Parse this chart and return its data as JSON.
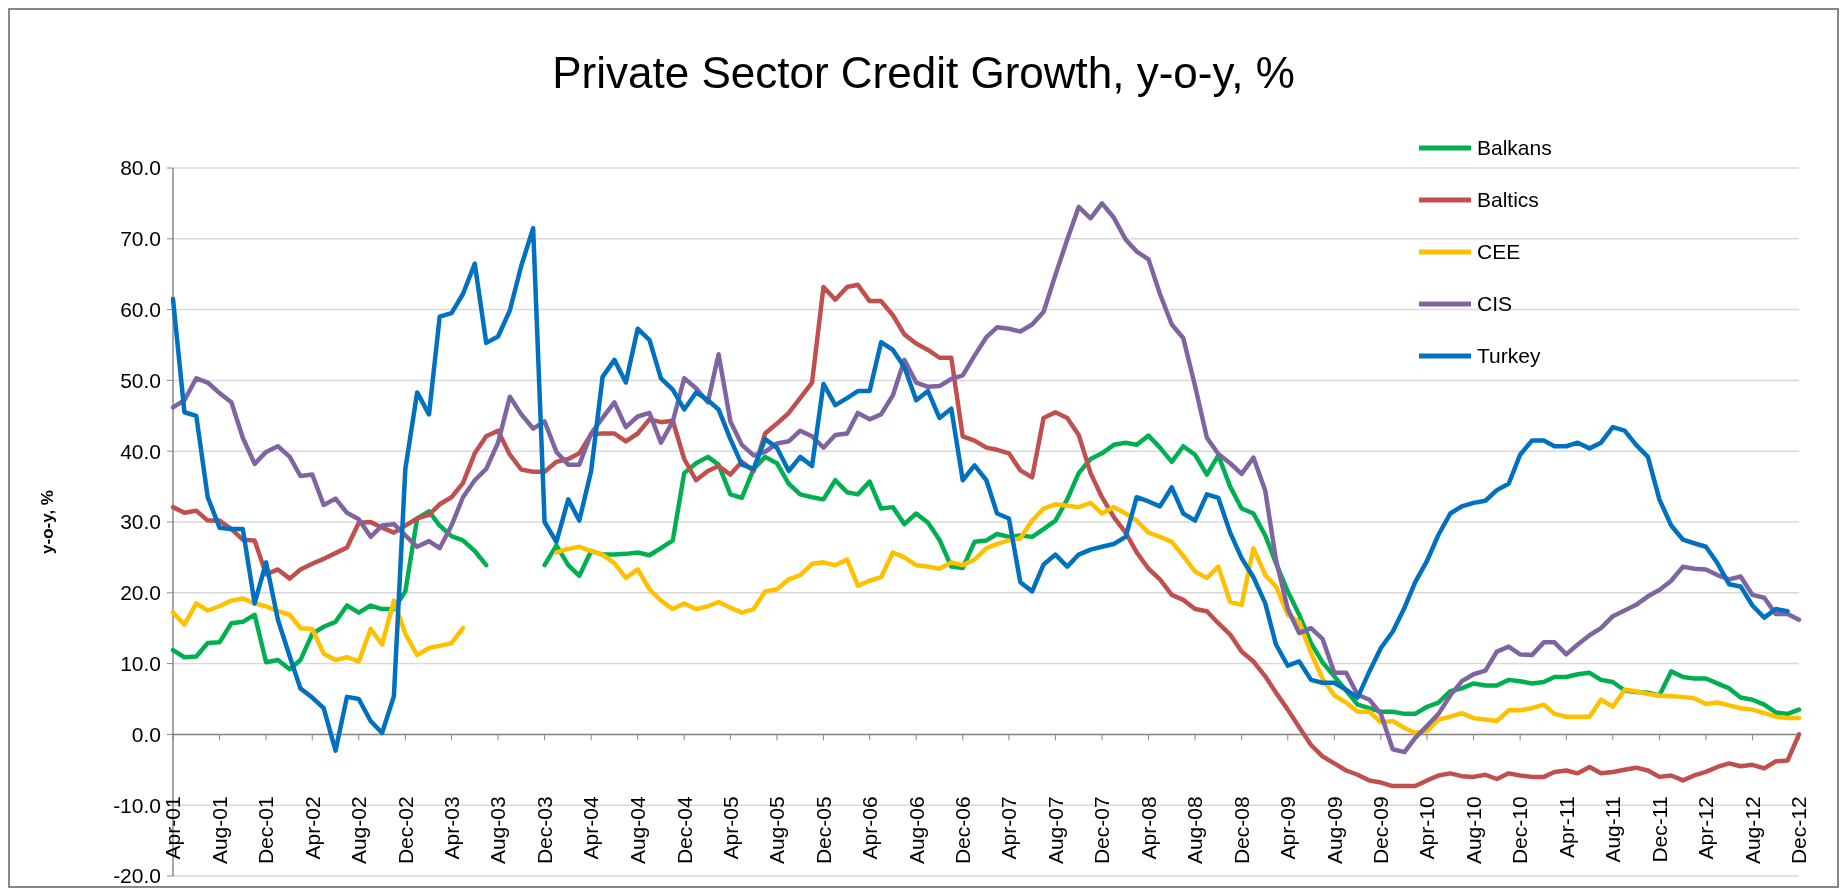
{
  "chart_data": {
    "type": "line",
    "title": "Private Sector Credit Growth, y-o-y, %",
    "ylabel": "y-o-y, %",
    "x": [
      "2001-04",
      "2001-05",
      "2001-06",
      "2001-07",
      "2001-08",
      "2001-09",
      "2001-10",
      "2001-11",
      "2001-12",
      "2002-01",
      "2002-02",
      "2002-03",
      "2002-04",
      "2002-05",
      "2002-06",
      "2002-07",
      "2002-08",
      "2002-09",
      "2002-10",
      "2002-11",
      "2002-12",
      "2003-01",
      "2003-02",
      "2003-03",
      "2003-04",
      "2003-05",
      "2003-06",
      "2003-07",
      "2003-08",
      "2003-09",
      "2003-10",
      "2003-11",
      "2003-12",
      "2004-01",
      "2004-02",
      "2004-03",
      "2004-04",
      "2004-05",
      "2004-06",
      "2004-07",
      "2004-08",
      "2004-09",
      "2004-10",
      "2004-11",
      "2004-12",
      "2005-01",
      "2005-02",
      "2005-03",
      "2005-04",
      "2005-05",
      "2005-06",
      "2005-07",
      "2005-08",
      "2005-09",
      "2005-10",
      "2005-11",
      "2005-12",
      "2006-01",
      "2006-02",
      "2006-03",
      "2006-04",
      "2006-05",
      "2006-06",
      "2006-07",
      "2006-08",
      "2006-09",
      "2006-10",
      "2006-11",
      "2006-12",
      "2007-01",
      "2007-02",
      "2007-03",
      "2007-04",
      "2007-05",
      "2007-06",
      "2007-07",
      "2007-08",
      "2007-09",
      "2007-10",
      "2007-11",
      "2007-12",
      "2008-01",
      "2008-02",
      "2008-03",
      "2008-04",
      "2008-05",
      "2008-06",
      "2008-07",
      "2008-08",
      "2008-09",
      "2008-10",
      "2008-11",
      "2008-12",
      "2009-01",
      "2009-02",
      "2009-03",
      "2009-04",
      "2009-05",
      "2009-06",
      "2009-07",
      "2009-08",
      "2009-09",
      "2009-10",
      "2009-11",
      "2009-12",
      "2010-01",
      "2010-02",
      "2010-03",
      "2010-04",
      "2010-05",
      "2010-06",
      "2010-07",
      "2010-08",
      "2010-09",
      "2010-10",
      "2010-11",
      "2010-12",
      "2011-01",
      "2011-02",
      "2011-03",
      "2011-04",
      "2011-05",
      "2011-06",
      "2011-07",
      "2011-08",
      "2011-09",
      "2011-10",
      "2011-11",
      "2011-12",
      "2012-01",
      "2012-02",
      "2012-03",
      "2012-04",
      "2012-05",
      "2012-06",
      "2012-07",
      "2012-08",
      "2012-09",
      "2012-10",
      "2012-11",
      "2012-12"
    ],
    "series": [
      {
        "name": "Balkans",
        "color": "#00b050",
        "values": [
          11.9,
          10.9,
          11,
          12.9,
          13,
          15.7,
          15.9,
          16.9,
          10.2,
          10.5,
          9.2,
          10.5,
          14.2,
          15.2,
          15.9,
          18.2,
          17.2,
          18.2,
          17.7,
          17.7,
          20.2,
          30.5,
          31.5,
          29.5,
          28,
          27.4,
          25.9,
          23.9,
          null,
          null,
          null,
          null,
          23.9,
          26.7,
          23.9,
          22.4,
          25.9,
          25.4,
          25.4,
          25.5,
          25.7,
          25.3,
          26.3,
          27.4,
          36.9,
          38.3,
          39.2,
          38.1,
          33.9,
          33.4,
          37.5,
          39.2,
          38.3,
          35.4,
          33.9,
          33.5,
          33.2,
          35.9,
          34.2,
          33.9,
          35.7,
          31.9,
          32.1,
          29.7,
          31.2,
          29.9,
          27.5,
          23.7,
          23.5,
          27.2,
          27.4,
          28.3,
          27.9,
          28.1,
          27.9,
          29,
          30.2,
          33.2,
          36.9,
          38.9,
          39.7,
          40.9,
          41.2,
          40.9,
          42.2,
          40.5,
          38.5,
          40.7,
          39.5,
          36.7,
          39.4,
          35,
          31.9,
          31.2,
          28.1,
          24.2,
          20.2,
          16.9,
          12.9,
          10.2,
          8.2,
          6.2,
          4.2,
          3.7,
          3.2,
          3.2,
          2.9,
          2.9,
          3.9,
          4.5,
          6.1,
          6.5,
          7.2,
          6.9,
          6.9,
          7.7,
          7.5,
          7.2,
          7.4,
          8.1,
          8.1,
          8.5,
          8.7,
          7.7,
          7.4,
          6.2,
          6,
          5.9,
          5.5,
          8.9,
          8.1,
          7.9,
          7.9,
          7.2,
          6.5,
          5.2,
          4.9,
          4.2,
          3.1,
          2.9,
          3.5
        ]
      },
      {
        "name": "Baltics",
        "color": "#c0504d",
        "values": [
          32.1,
          31.3,
          31.6,
          30.2,
          30.2,
          29,
          27.5,
          27.4,
          22.6,
          23.3,
          22,
          23.3,
          24.1,
          24.8,
          25.6,
          26.4,
          29.9,
          30,
          29.2,
          28.5,
          29.5,
          30.5,
          31,
          32.5,
          33.5,
          35.5,
          39.7,
          42.1,
          42.9,
          39.5,
          37.4,
          37.1,
          37.1,
          38.5,
          38.9,
          39.7,
          42.4,
          42.5,
          42.5,
          41.4,
          42.5,
          44.5,
          44.1,
          44.3,
          38.9,
          35.9,
          37.2,
          37.9,
          36.7,
          38.5,
          37.2,
          42.5,
          43.9,
          45.4,
          47.5,
          49.7,
          63.2,
          61.4,
          63.2,
          63.5,
          61.2,
          61.2,
          59.2,
          56.5,
          55.2,
          54.3,
          53.2,
          53.2,
          42.1,
          41.5,
          40.5,
          40.2,
          39.7,
          37.3,
          36.3,
          44.7,
          45.5,
          44.7,
          42.3,
          36.9,
          33.5,
          30.7,
          28.5,
          25.7,
          23.4,
          21.9,
          19.7,
          19,
          17.7,
          17.4,
          15.7,
          14.1,
          11.7,
          10.3,
          8.2,
          5.9,
          3.5,
          1,
          -1.5,
          -3.1,
          -4.1,
          -5.1,
          -5.7,
          -6.5,
          -6.8,
          -7.3,
          -7.3,
          -7.3,
          -6.5,
          -5.8,
          -5.5,
          -5.9,
          -6,
          -5.7,
          -6.3,
          -5.5,
          -5.8,
          -6,
          -6,
          -5.3,
          -5.1,
          -5.5,
          -4.6,
          -5.5,
          -5.3,
          -5,
          -4.7,
          -5.1,
          -6,
          -5.8,
          -6.5,
          -5.8,
          -5.3,
          -4.6,
          -4.1,
          -4.5,
          -4.3,
          -4.8,
          -3.8,
          -3.7,
          0
        ]
      },
      {
        "name": "CEE",
        "color": "#ffc000",
        "values": [
          17.2,
          15.5,
          18.5,
          17.5,
          18.1,
          18.9,
          19.2,
          18.5,
          18.1,
          17.4,
          16.9,
          15,
          14.9,
          11.4,
          10.5,
          10.9,
          10.3,
          14.9,
          12.7,
          18.9,
          14.2,
          11.2,
          12.2,
          12.5,
          12.9,
          15,
          null,
          null,
          null,
          null,
          null,
          null,
          null,
          25.7,
          26.2,
          26.5,
          25.9,
          25.4,
          24.2,
          22.1,
          23.3,
          20.5,
          18.9,
          17.7,
          18.5,
          17.7,
          18.1,
          18.7,
          17.9,
          17.2,
          17.7,
          20.2,
          20.5,
          21.9,
          22.5,
          24.1,
          24.3,
          23.9,
          24.7,
          21,
          21.7,
          22.2,
          25.7,
          25,
          23.9,
          23.7,
          23.4,
          24.3,
          23.9,
          24.7,
          26.3,
          26.9,
          27.4,
          27.7,
          30.2,
          31.9,
          32.5,
          32.3,
          32.1,
          32.7,
          31.2,
          32.1,
          31.2,
          30.2,
          28.5,
          27.9,
          27.2,
          25.2,
          23,
          22.1,
          23.7,
          18.7,
          18.3,
          26.3,
          22.5,
          20.9,
          16.9,
          15.9,
          11.5,
          7.9,
          5.5,
          4.5,
          3.2,
          3.2,
          1.7,
          1.9,
          0.9,
          0.2,
          0.5,
          2.1,
          2.5,
          3,
          2.3,
          2.1,
          1.9,
          3.4,
          3.4,
          3.7,
          4.2,
          2.9,
          2.5,
          2.5,
          2.5,
          4.9,
          3.9,
          6.3,
          6.1,
          5.7,
          5.5,
          5.4,
          5.3,
          5.1,
          4.3,
          4.5,
          4.1,
          3.7,
          3.5,
          3,
          2.5,
          2.3,
          2.3
        ]
      },
      {
        "name": "CIS",
        "color": "#8064a2",
        "values": [
          46.2,
          47.2,
          50.3,
          49.7,
          48.2,
          46.9,
          41.9,
          38.2,
          39.9,
          40.7,
          39.2,
          36.5,
          36.7,
          32.4,
          33.3,
          31.3,
          30.4,
          27.9,
          29.5,
          29.7,
          28.1,
          26.5,
          27.3,
          26.3,
          29.5,
          33.5,
          35.9,
          37.5,
          41.2,
          47.7,
          45.2,
          43.2,
          44.2,
          39.9,
          38.1,
          38.1,
          42.5,
          44.7,
          46.9,
          43.4,
          44.9,
          45.4,
          41.2,
          44.2,
          50.3,
          48.9,
          46.9,
          53.7,
          44.2,
          40.9,
          39.4,
          39.9,
          41.1,
          41.4,
          42.9,
          42.1,
          40.5,
          42.3,
          42.5,
          45.4,
          44.5,
          45.2,
          47.9,
          52.9,
          49.7,
          49.1,
          49.2,
          50.2,
          50.7,
          53.5,
          56.1,
          57.5,
          57.3,
          56.9,
          57.9,
          59.7,
          64.9,
          69.9,
          74.5,
          72.9,
          75,
          73,
          69.9,
          68.2,
          67.1,
          62.2,
          57.9,
          56,
          49.2,
          41.9,
          39.6,
          38.3,
          36.8,
          39.1,
          34.4,
          24.7,
          17.7,
          14.3,
          15,
          13.5,
          8.7,
          8.7,
          5.6,
          4.9,
          2.9,
          -2.1,
          -2.5,
          -0.5,
          1.2,
          2.9,
          5.5,
          7.5,
          8.5,
          9,
          11.7,
          12.4,
          11.3,
          11.2,
          13,
          13,
          11.3,
          12.7,
          14,
          15,
          16.7,
          17.5,
          18.3,
          19.5,
          20.4,
          21.7,
          23.7,
          23.4,
          23.3,
          22.5,
          21.9,
          22.3,
          19.7,
          19.3,
          17,
          17,
          16.2
        ]
      },
      {
        "name": "Turkey",
        "color": "#0070c0",
        "values": [
          61.5,
          45.5,
          45,
          33.5,
          29.2,
          29,
          29,
          18.5,
          24.3,
          16.2,
          11,
          6.5,
          5.2,
          3.7,
          -2.3,
          5.3,
          5,
          1.9,
          0.2,
          5.4,
          37.5,
          48.3,
          45.2,
          59,
          59.5,
          62.2,
          66.5,
          55.3,
          56.2,
          59.9,
          66.2,
          71.5,
          30,
          27.2,
          33.2,
          30.2,
          37.2,
          50.5,
          52.9,
          49.7,
          57.3,
          55.7,
          50.3,
          48.7,
          45.9,
          48.3,
          47.2,
          45.9,
          41.7,
          38.1,
          37.5,
          41.7,
          40.5,
          37.2,
          39.2,
          37.9,
          49.5,
          46.5,
          47.5,
          48.5,
          48.5,
          55.4,
          54.3,
          51.9,
          47.2,
          48.5,
          44.7,
          46,
          35.9,
          38,
          35.9,
          31.2,
          30.5,
          21.5,
          20.2,
          24,
          25.4,
          23.7,
          25.4,
          26.1,
          26.5,
          26.9,
          27.9,
          33.5,
          32.9,
          32.2,
          34.9,
          31.2,
          30.2,
          33.9,
          33.4,
          28.5,
          24.9,
          22.2,
          18.5,
          12.7,
          9.7,
          10.3,
          7.7,
          7.3,
          7.3,
          6.3,
          5.2,
          8.9,
          12.2,
          14.5,
          17.9,
          21.5,
          24.5,
          28.2,
          31.2,
          32.2,
          32.7,
          33,
          34.5,
          35.4,
          39.5,
          41.5,
          41.5,
          40.7,
          40.7,
          41.2,
          40.4,
          41.2,
          43.4,
          42.9,
          40.9,
          39.2,
          33.2,
          29.5,
          27.5,
          27,
          26.5,
          24.2,
          21.2,
          20.9,
          18.2,
          16.5,
          17.7,
          17.4,
          null
        ]
      }
    ],
    "xlim": [
      "2001-04",
      "2012-12"
    ],
    "xticks": [
      {
        "value": "2001-04",
        "label": "Apr-01"
      },
      {
        "value": "2001-08",
        "label": "Aug-01"
      },
      {
        "value": "2001-12",
        "label": "Dec-01"
      },
      {
        "value": "2002-04",
        "label": "Apr-02"
      },
      {
        "value": "2002-08",
        "label": "Aug-02"
      },
      {
        "value": "2002-12",
        "label": "Dec-02"
      },
      {
        "value": "2003-04",
        "label": "Apr-03"
      },
      {
        "value": "2003-08",
        "label": "Aug-03"
      },
      {
        "value": "2003-12",
        "label": "Dec-03"
      },
      {
        "value": "2004-04",
        "label": "Apr-04"
      },
      {
        "value": "2004-08",
        "label": "Aug-04"
      },
      {
        "value": "2004-12",
        "label": "Dec-04"
      },
      {
        "value": "2005-04",
        "label": "Apr-05"
      },
      {
        "value": "2005-08",
        "label": "Aug-05"
      },
      {
        "value": "2005-12",
        "label": "Dec-05"
      },
      {
        "value": "2006-04",
        "label": "Apr-06"
      },
      {
        "value": "2006-08",
        "label": "Aug-06"
      },
      {
        "value": "2006-12",
        "label": "Dec-06"
      },
      {
        "value": "2007-04",
        "label": "Apr-07"
      },
      {
        "value": "2007-08",
        "label": "Aug-07"
      },
      {
        "value": "2007-12",
        "label": "Dec-07"
      },
      {
        "value": "2008-04",
        "label": "Apr-08"
      },
      {
        "value": "2008-08",
        "label": "Aug-08"
      },
      {
        "value": "2008-12",
        "label": "Dec-08"
      },
      {
        "value": "2009-04",
        "label": "Apr-09"
      },
      {
        "value": "2009-08",
        "label": "Aug-09"
      },
      {
        "value": "2009-12",
        "label": "Dec-09"
      },
      {
        "value": "2010-04",
        "label": "Apr-10"
      },
      {
        "value": "2010-08",
        "label": "Aug-10"
      },
      {
        "value": "2010-12",
        "label": "Dec-10"
      },
      {
        "value": "2011-04",
        "label": "Apr-11"
      },
      {
        "value": "2011-08",
        "label": "Aug-11"
      },
      {
        "value": "2011-12",
        "label": "Dec-11"
      },
      {
        "value": "2012-04",
        "label": "Apr-12"
      },
      {
        "value": "2012-08",
        "label": "Aug-12"
      },
      {
        "value": "2012-12",
        "label": "Dec-12"
      }
    ],
    "ylim": [
      -20,
      80
    ],
    "yticks": [
      {
        "value": -20,
        "label": "-20.0"
      },
      {
        "value": -10,
        "label": "-10.0"
      },
      {
        "value": 0,
        "label": "0.0"
      },
      {
        "value": 10,
        "label": "10.0"
      },
      {
        "value": 20,
        "label": "20.0"
      },
      {
        "value": 30,
        "label": "30.0"
      },
      {
        "value": 40,
        "label": "40.0"
      },
      {
        "value": 50,
        "label": "50.0"
      },
      {
        "value": 60,
        "label": "60.0"
      },
      {
        "value": 70,
        "label": "70.0"
      },
      {
        "value": 80,
        "label": "80.0"
      }
    ],
    "grid": "y",
    "legend": "top right",
    "marker": "none",
    "line_style": "solid"
  }
}
